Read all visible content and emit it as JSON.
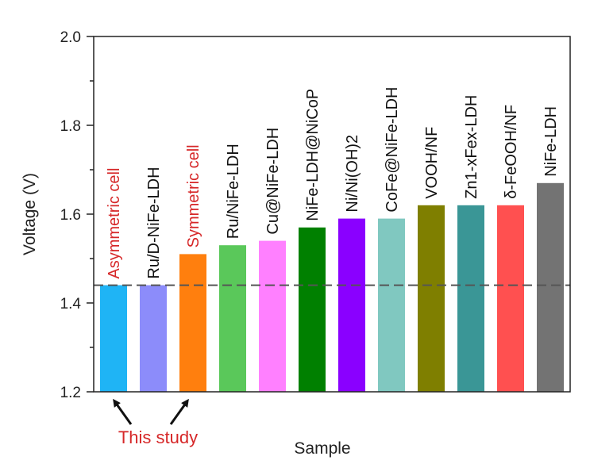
{
  "chart_data": {
    "type": "bar",
    "xlabel": "Sample",
    "ylabel": "Voltage (V)",
    "ylim": [
      1.2,
      2.0
    ],
    "yticks": [
      "1.2",
      "1.4",
      "1.6",
      "1.8",
      "2.0"
    ],
    "reference_line": 1.44,
    "categories": [
      "Asymmetric cell",
      "Ru/D-NiFe-LDH",
      "Symmetric cell",
      "Ru/NiFe-LDH",
      "Cu@NiFe-LDH",
      "NiFe-LDH@NiCoP",
      "Ni/Ni(OH)2",
      "CoFe@NiFe-LDH",
      "VOOH/NF",
      "Zn1-xFex-LDH",
      "δ-FeOOH/NF",
      "NiFe-LDH"
    ],
    "values": [
      1.44,
      1.44,
      1.51,
      1.53,
      1.54,
      1.57,
      1.59,
      1.59,
      1.62,
      1.62,
      1.62,
      1.67
    ],
    "colors": [
      "#1fb4f5",
      "#8c8cfa",
      "#ff7f0e",
      "#5ac85a",
      "#ff80ff",
      "#008000",
      "#8a00ff",
      "#80c8c0",
      "#7f7f00",
      "#3a9696",
      "#ff5050",
      "#737373"
    ],
    "label_colors": [
      "#d62728",
      "#111111",
      "#d62728",
      "#111111",
      "#111111",
      "#111111",
      "#111111",
      "#111111",
      "#111111",
      "#111111",
      "#111111",
      "#111111"
    ],
    "annotation": "This study"
  }
}
